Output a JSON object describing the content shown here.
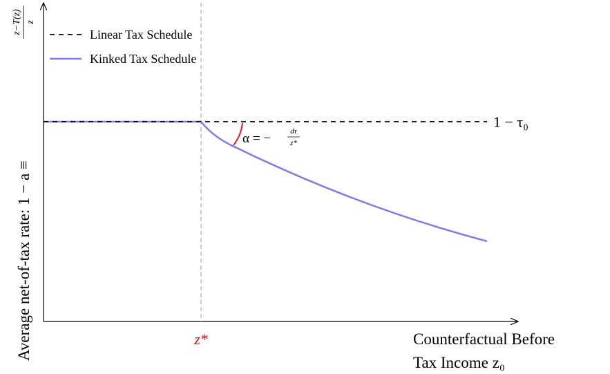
{
  "y_axis": {
    "label": "Average net-of-tax rate: 1 − a ≡",
    "fraction_numerator": "z−T(z)",
    "fraction_denominator": "z"
  },
  "x_axis": {
    "label_line1": "Counterfactual Before",
    "label_line2": "Tax Income z₀",
    "kink_label": "z*"
  },
  "legend": {
    "items": [
      "Linear Tax Schedule",
      "Kinked Tax Schedule"
    ]
  },
  "annotations": {
    "linear_level": "1 − τ₀",
    "angle_prefix": "α = −",
    "angle_numerator": "dτ",
    "angle_denominator": "z*"
  }
}
